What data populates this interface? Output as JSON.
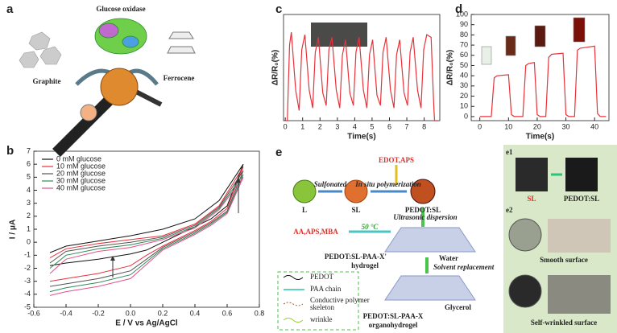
{
  "panel_labels": {
    "a": "a",
    "b": "b",
    "c": "c",
    "d": "d",
    "e": "e",
    "e1": "e1",
    "e2": "e2"
  },
  "panel_a": {
    "glucose_oxidase": "Glucose oxidase",
    "graphite": "Graphite",
    "ferrocene": "Ferrocene"
  },
  "chart_data": [
    {
      "type": "line",
      "xlabel": "E / V vs Ag/AgCl",
      "ylabel": "I / μA",
      "x": [
        -0.5,
        -0.4,
        -0.2,
        0,
        0.2,
        0.4,
        0.55,
        0.7,
        0.6,
        0.5,
        0.4,
        0.2,
        0.1,
        0,
        -0.2,
        -0.4,
        -0.5
      ],
      "series": [
        {
          "name": "0 mM glucose",
          "color": "#111111",
          "values": [
            -0.8,
            -0.3,
            0.1,
            0.5,
            1.0,
            1.8,
            3.2,
            6.0,
            2.8,
            1.8,
            1.2,
            0.0,
            -0.6,
            -0.9,
            -1.3,
            -1.6,
            -1.8
          ]
        },
        {
          "name": "10 mM glucose",
          "color": "#e8323a",
          "values": [
            -1.2,
            -0.5,
            -0.1,
            0.2,
            0.5,
            1.4,
            2.8,
            5.8,
            2.6,
            1.6,
            0.9,
            -0.3,
            -1.0,
            -1.8,
            -2.4,
            -2.8,
            -3.0
          ]
        },
        {
          "name": "20 mM glucose",
          "color": "#555555",
          "values": [
            -1.6,
            -0.7,
            -0.3,
            0.0,
            0.4,
            1.3,
            2.7,
            5.5,
            2.4,
            1.5,
            0.8,
            -0.4,
            -1.3,
            -2.2,
            -2.8,
            -3.2,
            -3.4
          ]
        },
        {
          "name": "30 mM glucose",
          "color": "#2e8b57",
          "values": [
            -2.0,
            -1.0,
            -0.5,
            -0.2,
            0.3,
            1.2,
            2.6,
            5.2,
            2.3,
            1.4,
            0.7,
            -0.5,
            -1.5,
            -2.5,
            -3.1,
            -3.5,
            -3.8
          ]
        },
        {
          "name": "40 mM glucose",
          "color": "#e0508a",
          "values": [
            -2.4,
            -1.3,
            -0.7,
            -0.4,
            0.2,
            1.1,
            2.5,
            5.0,
            2.2,
            1.3,
            0.6,
            -0.6,
            -1.7,
            -2.8,
            -3.4,
            -3.8,
            -4.1
          ]
        }
      ],
      "xlim": [
        -0.6,
        0.8
      ],
      "xticks": [
        -0.6,
        -0.4,
        -0.2,
        {
          "value": 0,
          "label": "0.0"
        },
        0.2,
        0.4,
        0.6,
        0.8
      ],
      "ylim": [
        -5,
        7
      ],
      "yticks": [
        -5,
        -4,
        -3,
        -2,
        -1,
        0,
        1,
        2,
        3,
        4,
        5,
        6,
        7
      ],
      "legend": "upper left"
    },
    {
      "type": "line",
      "xlabel": "Time(s)",
      "ylabel": "ΔR/R₀(%)",
      "color": "#e8323a",
      "x": [
        0,
        0.12,
        0.25,
        0.35,
        0.6,
        0.8,
        0.95,
        1.13,
        1.38,
        1.58,
        1.73,
        1.91,
        2.16,
        2.36,
        2.51,
        2.69,
        2.94,
        3.14,
        3.29,
        3.47,
        3.72,
        3.92,
        4.07,
        4.25,
        4.5,
        4.7,
        4.85,
        5.03,
        5.28,
        5.48,
        5.63,
        5.81,
        6.06,
        6.26,
        6.41,
        6.59,
        6.84,
        7.04,
        7.19,
        7.37,
        7.62,
        7.82,
        7.97,
        8.15,
        8.4,
        8.55,
        8.6,
        8.8
      ],
      "values": [
        0,
        0,
        30,
        35,
        12,
        4,
        28,
        34,
        12,
        5,
        27,
        33,
        11,
        6,
        28,
        33,
        12,
        5,
        26,
        32,
        11,
        6,
        27,
        33,
        12,
        5,
        26,
        32,
        10,
        6,
        27,
        33,
        12,
        5,
        26,
        32,
        11,
        6,
        27,
        33,
        12,
        5,
        28,
        34,
        33,
        6,
        0,
        0
      ],
      "xlim": [
        -0.1,
        8.9
      ],
      "xticks": [
        0,
        1,
        2,
        3,
        4,
        5,
        6,
        7,
        8
      ],
      "ylim": [
        0,
        42
      ]
    },
    {
      "type": "line",
      "xlabel": "Time(s)",
      "ylabel": "ΔR/R₀(%)",
      "color": "#e8323a",
      "x": [
        0,
        4,
        5,
        6,
        10,
        11,
        12,
        15,
        16,
        17,
        19,
        20,
        21,
        23,
        24,
        25,
        29,
        30,
        31,
        33,
        34,
        35,
        40,
        41,
        42,
        44
      ],
      "values": [
        0,
        0,
        38,
        40,
        41,
        2,
        0,
        0,
        50,
        52,
        53,
        2,
        0,
        0,
        58,
        61,
        62,
        2,
        0,
        0,
        65,
        67,
        69,
        3,
        0,
        0
      ],
      "xlim": [
        -3,
        45
      ],
      "xticks": [
        0,
        10,
        20,
        30,
        40
      ],
      "ylim": [
        -4,
        100
      ],
      "yticks": [
        0,
        10,
        20,
        30,
        40,
        50,
        60,
        70,
        80,
        90,
        100
      ]
    }
  ],
  "panel_e": {
    "L": "L",
    "SL": "SL",
    "PEDOT_SL": "PEDOT:SL",
    "sulfonated": "Sulfonated",
    "edot_aps": "EDOT,APS",
    "in_situ": "In situ polymerization",
    "ultrasonic": "Ultrasonic dispersion",
    "aa_aps_mba": "AA,APS,MBA",
    "temp": "50 °C",
    "hydrogel": [
      "PEDOT:SL-PAA-X'",
      "hydrogel"
    ],
    "water": "Water",
    "solvent": "Solvent replacement",
    "glycerol": "Glycerol",
    "organohydrogel": [
      "PEDOT:SL-PAA-X",
      "organohydrogel"
    ],
    "legend": {
      "pedot": "PEDOT",
      "paa": "PAA chain",
      "skeleton": [
        "Conductive polymer",
        "skeleton"
      ],
      "wrinkle": "wrinkle"
    },
    "e1": {
      "sl": "SL",
      "pedot_sl": "PEDOT:SL"
    },
    "e2": {
      "smooth": "Smooth surface",
      "wrinkled": "Self-wrinkled surface"
    }
  }
}
